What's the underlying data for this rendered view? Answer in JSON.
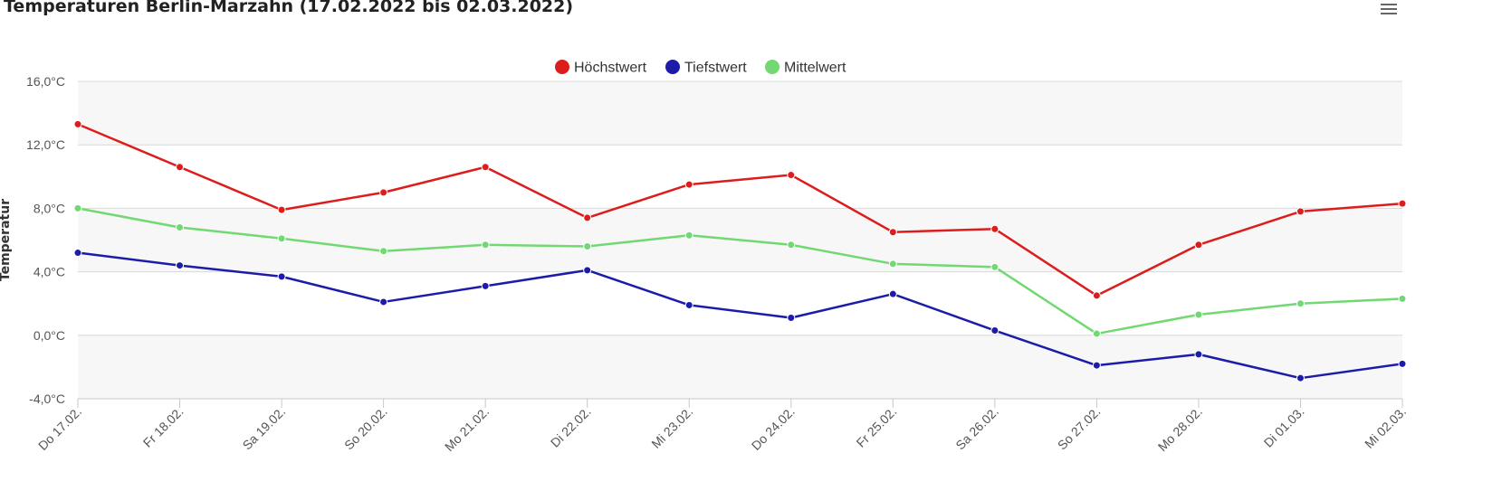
{
  "title": "Temperaturen Berlin-Marzahn (17.02.2022 bis 02.03.2022)",
  "menu_icon": "hamburger-menu-icon",
  "chart_data": {
    "type": "line",
    "title": "Temperaturen Berlin-Marzahn (17.02.2022 bis 02.03.2022)",
    "xlabel": "",
    "ylabel": "Temperatur",
    "ylim": [
      -4,
      16
    ],
    "yticks": [
      -4,
      0,
      4,
      8,
      12,
      16
    ],
    "ytick_labels": [
      "-4,0°C",
      "0,0°C",
      "4,0°C",
      "8,0°C",
      "12,0°C",
      "16,0°C"
    ],
    "grid": true,
    "legend_position": "top-center",
    "categories": [
      "Do 17.02.",
      "Fr 18.02.",
      "Sa 19.02.",
      "So 20.02.",
      "Mo 21.02.",
      "Di 22.02.",
      "Mi 23.02.",
      "Do 24.02.",
      "Fr 25.02.",
      "Sa 26.02.",
      "So 27.02.",
      "Mo 28.02.",
      "Di 01.03.",
      "Mi 02.03."
    ],
    "series": [
      {
        "name": "Höchstwert",
        "color": "#dd1c1c",
        "values": [
          13.3,
          10.6,
          7.9,
          9.0,
          10.6,
          7.4,
          9.5,
          10.1,
          6.5,
          6.7,
          2.5,
          5.7,
          7.8,
          8.3
        ]
      },
      {
        "name": "Tiefstwert",
        "color": "#1c1ca8",
        "values": [
          5.2,
          4.4,
          3.7,
          2.1,
          3.1,
          4.1,
          1.9,
          1.1,
          2.6,
          0.3,
          -1.9,
          -1.2,
          -2.7,
          -1.8
        ]
      },
      {
        "name": "Mittelwert",
        "color": "#72d872",
        "values": [
          8.0,
          6.8,
          6.1,
          5.3,
          5.7,
          5.6,
          6.3,
          5.7,
          4.5,
          4.3,
          0.1,
          1.3,
          2.0,
          2.3
        ]
      }
    ]
  }
}
